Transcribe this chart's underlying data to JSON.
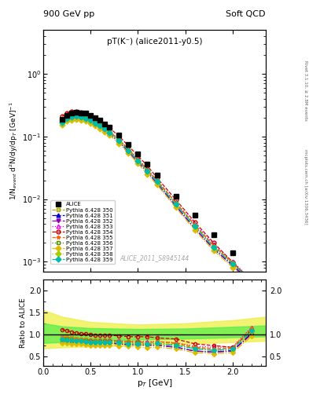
{
  "title_top": "900 GeV pp",
  "title_right": "Soft QCD",
  "subtitle": "pT(K⁻) (alice2011-y0.5)",
  "watermark": "ALICE_2011_S8945144",
  "right_label_top": "Rivet 3.1.10, ≥ 2.8M events",
  "right_label_bottom": "mcplots.cern.ch [arXiv:1306.3436]",
  "ylabel_main": "1/N$_{event}$ d$^{2}$N/dy/dp$_{T}$ [GeV]$^{-1}$",
  "ylabel_ratio": "Ratio to ALICE",
  "xlabel": "p$_{T}$ [GeV]",
  "xlim": [
    0.0,
    2.35
  ],
  "ylim_main": [
    0.0007,
    5.0
  ],
  "ylim_ratio": [
    0.28,
    2.25
  ],
  "alice_x": [
    0.2,
    0.25,
    0.3,
    0.35,
    0.4,
    0.45,
    0.5,
    0.55,
    0.6,
    0.65,
    0.7,
    0.8,
    0.9,
    1.0,
    1.1,
    1.2,
    1.4,
    1.6,
    1.8,
    2.0,
    2.2
  ],
  "alice_y": [
    0.19,
    0.22,
    0.235,
    0.245,
    0.24,
    0.235,
    0.22,
    0.2,
    0.18,
    0.16,
    0.14,
    0.105,
    0.075,
    0.052,
    0.036,
    0.024,
    0.011,
    0.0055,
    0.0027,
    0.0014,
    0.00045
  ],
  "series": [
    {
      "label": "Pythia 6.428 350",
      "color": "#aaaa00",
      "linestyle": "--",
      "marker": "s",
      "markerfacecolor": "none",
      "x": [
        0.2,
        0.25,
        0.3,
        0.35,
        0.4,
        0.45,
        0.5,
        0.55,
        0.6,
        0.65,
        0.7,
        0.8,
        0.9,
        1.0,
        1.1,
        1.2,
        1.4,
        1.6,
        1.8,
        2.0,
        2.2
      ],
      "y": [
        0.18,
        0.205,
        0.217,
        0.22,
        0.215,
        0.207,
        0.191,
        0.173,
        0.156,
        0.139,
        0.121,
        0.089,
        0.062,
        0.043,
        0.029,
        0.02,
        0.0086,
        0.0038,
        0.0018,
        0.00095,
        0.0005
      ]
    },
    {
      "label": "Pythia 6.428 351",
      "color": "#0000cc",
      "linestyle": "-.",
      "marker": "^",
      "markerfacecolor": "#0000cc",
      "x": [
        0.2,
        0.25,
        0.3,
        0.35,
        0.4,
        0.45,
        0.5,
        0.55,
        0.6,
        0.65,
        0.7,
        0.8,
        0.9,
        1.0,
        1.1,
        1.2,
        1.4,
        1.6,
        1.8,
        2.0,
        2.2
      ],
      "y": [
        0.163,
        0.188,
        0.199,
        0.204,
        0.199,
        0.192,
        0.177,
        0.16,
        0.144,
        0.128,
        0.112,
        0.082,
        0.057,
        0.04,
        0.027,
        0.018,
        0.0078,
        0.0034,
        0.0016,
        0.00088,
        0.00046
      ]
    },
    {
      "label": "Pythia 6.428 352",
      "color": "#8800aa",
      "linestyle": "-.",
      "marker": "v",
      "markerfacecolor": "#8800aa",
      "x": [
        0.2,
        0.25,
        0.3,
        0.35,
        0.4,
        0.45,
        0.5,
        0.55,
        0.6,
        0.65,
        0.7,
        0.8,
        0.9,
        1.0,
        1.1,
        1.2,
        1.4,
        1.6,
        1.8,
        2.0,
        2.2
      ],
      "y": [
        0.163,
        0.188,
        0.199,
        0.203,
        0.198,
        0.191,
        0.176,
        0.159,
        0.143,
        0.127,
        0.111,
        0.082,
        0.057,
        0.039,
        0.027,
        0.018,
        0.0077,
        0.0034,
        0.0016,
        0.00086,
        0.00045
      ]
    },
    {
      "label": "Pythia 6.428 353",
      "color": "#ee00ee",
      "linestyle": ":",
      "marker": "^",
      "markerfacecolor": "none",
      "x": [
        0.2,
        0.25,
        0.3,
        0.35,
        0.4,
        0.45,
        0.5,
        0.55,
        0.6,
        0.65,
        0.7,
        0.8,
        0.9,
        1.0,
        1.1,
        1.2,
        1.4,
        1.6,
        1.8,
        2.0,
        2.2
      ],
      "y": [
        0.175,
        0.2,
        0.214,
        0.218,
        0.213,
        0.205,
        0.19,
        0.172,
        0.155,
        0.138,
        0.121,
        0.089,
        0.063,
        0.044,
        0.03,
        0.02,
        0.0089,
        0.004,
        0.0019,
        0.001,
        0.00052
      ]
    },
    {
      "label": "Pythia 6.428 354",
      "color": "#cc0000",
      "linestyle": "--",
      "marker": "o",
      "markerfacecolor": "none",
      "x": [
        0.2,
        0.25,
        0.3,
        0.35,
        0.4,
        0.45,
        0.5,
        0.55,
        0.6,
        0.65,
        0.7,
        0.8,
        0.9,
        1.0,
        1.1,
        1.2,
        1.4,
        1.6,
        1.8,
        2.0,
        2.2
      ],
      "y": [
        0.21,
        0.237,
        0.248,
        0.251,
        0.245,
        0.236,
        0.218,
        0.197,
        0.177,
        0.157,
        0.137,
        0.101,
        0.071,
        0.049,
        0.034,
        0.022,
        0.0098,
        0.0043,
        0.002,
        0.00098,
        0.00049
      ]
    },
    {
      "label": "Pythia 6.428 355",
      "color": "#ff6600",
      "linestyle": "--",
      "marker": "*",
      "markerfacecolor": "#ff6600",
      "x": [
        0.2,
        0.25,
        0.3,
        0.35,
        0.4,
        0.45,
        0.5,
        0.55,
        0.6,
        0.65,
        0.7,
        0.8,
        0.9,
        1.0,
        1.1,
        1.2,
        1.4,
        1.6,
        1.8,
        2.0,
        2.2
      ],
      "y": [
        0.177,
        0.202,
        0.213,
        0.217,
        0.212,
        0.204,
        0.189,
        0.171,
        0.154,
        0.137,
        0.12,
        0.088,
        0.062,
        0.043,
        0.029,
        0.02,
        0.0088,
        0.0039,
        0.0018,
        0.00097,
        0.00051
      ]
    },
    {
      "label": "Pythia 6.428 356",
      "color": "#558800",
      "linestyle": ":",
      "marker": "s",
      "markerfacecolor": "none",
      "x": [
        0.2,
        0.25,
        0.3,
        0.35,
        0.4,
        0.45,
        0.5,
        0.55,
        0.6,
        0.65,
        0.7,
        0.8,
        0.9,
        1.0,
        1.1,
        1.2,
        1.4,
        1.6,
        1.8,
        2.0,
        2.2
      ],
      "y": [
        0.17,
        0.195,
        0.206,
        0.21,
        0.206,
        0.198,
        0.183,
        0.166,
        0.149,
        0.133,
        0.117,
        0.086,
        0.06,
        0.042,
        0.028,
        0.019,
        0.0083,
        0.0037,
        0.0017,
        0.00092,
        0.00048
      ]
    },
    {
      "label": "Pythia 6.428 357",
      "color": "#ddbb00",
      "linestyle": "-.",
      "marker": "D",
      "markerfacecolor": "#ddbb00",
      "x": [
        0.2,
        0.25,
        0.3,
        0.35,
        0.4,
        0.45,
        0.5,
        0.55,
        0.6,
        0.65,
        0.7,
        0.8,
        0.9,
        1.0,
        1.1,
        1.2,
        1.4,
        1.6,
        1.8,
        2.0,
        2.2
      ],
      "y": [
        0.152,
        0.175,
        0.185,
        0.189,
        0.185,
        0.178,
        0.164,
        0.149,
        0.134,
        0.119,
        0.105,
        0.077,
        0.054,
        0.037,
        0.025,
        0.017,
        0.0073,
        0.0032,
        0.0015,
        0.00081,
        0.00043
      ]
    },
    {
      "label": "Pythia 6.428 358",
      "color": "#aacc00",
      "linestyle": ":",
      "marker": "D",
      "markerfacecolor": "#aacc00",
      "x": [
        0.2,
        0.25,
        0.3,
        0.35,
        0.4,
        0.45,
        0.5,
        0.55,
        0.6,
        0.65,
        0.7,
        0.8,
        0.9,
        1.0,
        1.1,
        1.2,
        1.4,
        1.6,
        1.8,
        2.0,
        2.2
      ],
      "y": [
        0.168,
        0.192,
        0.204,
        0.208,
        0.203,
        0.196,
        0.181,
        0.163,
        0.147,
        0.131,
        0.115,
        0.084,
        0.059,
        0.041,
        0.028,
        0.019,
        0.0082,
        0.0037,
        0.0017,
        0.00092,
        0.00048
      ]
    },
    {
      "label": "Pythia 6.428 359",
      "color": "#00bbaa",
      "linestyle": "-.",
      "marker": "D",
      "markerfacecolor": "#00bbaa",
      "x": [
        0.2,
        0.25,
        0.3,
        0.35,
        0.4,
        0.45,
        0.5,
        0.55,
        0.6,
        0.65,
        0.7,
        0.8,
        0.9,
        1.0,
        1.1,
        1.2,
        1.4,
        1.6,
        1.8,
        2.0,
        2.2
      ],
      "y": [
        0.168,
        0.193,
        0.204,
        0.208,
        0.203,
        0.196,
        0.181,
        0.164,
        0.147,
        0.131,
        0.115,
        0.085,
        0.059,
        0.041,
        0.028,
        0.019,
        0.0082,
        0.0037,
        0.0017,
        0.00093,
        0.00049
      ]
    }
  ],
  "band_yellow_x": [
    0.0,
    0.2,
    0.5,
    1.0,
    1.5,
    2.0,
    2.35
  ],
  "band_yellow_low": [
    0.68,
    0.7,
    0.72,
    0.75,
    0.78,
    0.82,
    0.85
  ],
  "band_yellow_high": [
    1.55,
    1.4,
    1.28,
    1.22,
    1.25,
    1.32,
    1.4
  ],
  "band_green_x": [
    0.0,
    0.2,
    0.5,
    1.0,
    1.5,
    2.0,
    2.35
  ],
  "band_green_low": [
    0.8,
    0.82,
    0.85,
    0.88,
    0.9,
    0.93,
    0.95
  ],
  "band_green_high": [
    1.25,
    1.18,
    1.14,
    1.12,
    1.13,
    1.17,
    1.2
  ]
}
